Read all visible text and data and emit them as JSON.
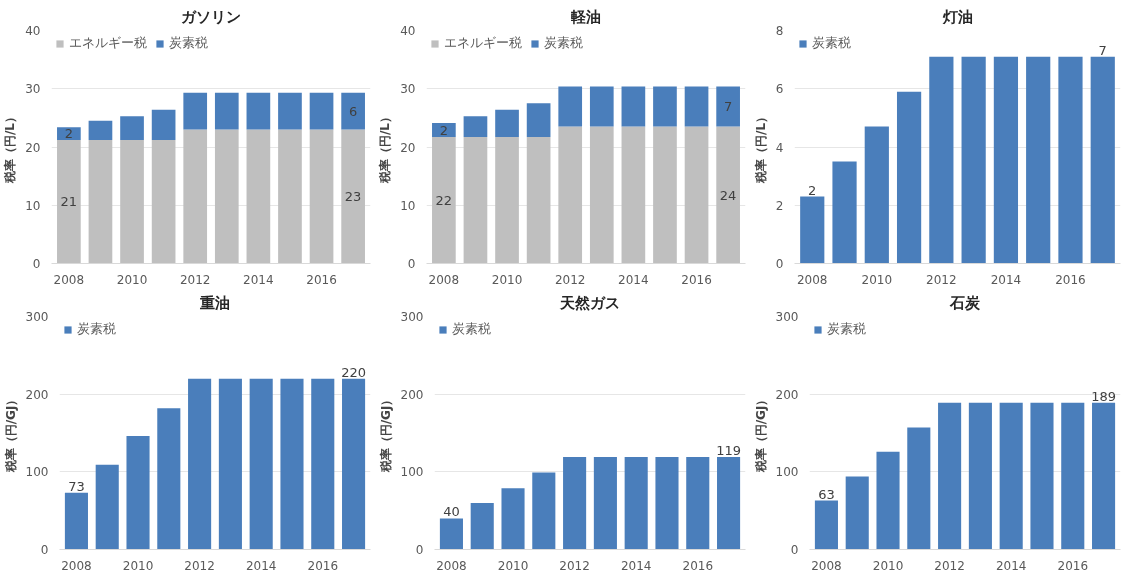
{
  "chart_data": [
    {
      "type": "bar",
      "title": "ガソリン",
      "ylabel": "税率（円/L）",
      "stacked": true,
      "categories": [
        "2008",
        null,
        "2010",
        null,
        "2012",
        null,
        "2014",
        null,
        "2016",
        null
      ],
      "ylim": [
        0,
        40
      ],
      "yticks": [
        0,
        10,
        20,
        30,
        40
      ],
      "grid": "y",
      "legend": "top left",
      "series": [
        {
          "name": "エネルギー税",
          "color": "#bfbfbf",
          "values": [
            21.2,
            21.2,
            21.2,
            21.2,
            23.0,
            23.0,
            23.0,
            23.0,
            23.0,
            23.0
          ],
          "value_labels": [
            "21",
            null,
            null,
            null,
            null,
            null,
            null,
            null,
            null,
            "23"
          ]
        },
        {
          "name": "炭素税",
          "color": "#4a7ebb",
          "values": [
            2.2,
            3.3,
            4.1,
            5.2,
            6.3,
            6.3,
            6.3,
            6.3,
            6.3,
            6.3
          ],
          "value_labels": [
            "2",
            null,
            null,
            null,
            null,
            null,
            null,
            null,
            null,
            "6"
          ]
        }
      ]
    },
    {
      "type": "bar",
      "title": "軽油",
      "ylabel": "税率（円/L）",
      "stacked": true,
      "categories": [
        "2008",
        null,
        "2010",
        null,
        "2012",
        null,
        "2014",
        null,
        "2016",
        null
      ],
      "ylim": [
        0,
        40
      ],
      "yticks": [
        0,
        10,
        20,
        30,
        40
      ],
      "grid": "y",
      "legend": "top left",
      "series": [
        {
          "name": "エネルギー税",
          "color": "#bfbfbf",
          "values": [
            21.7,
            21.7,
            21.7,
            21.7,
            23.5,
            23.5,
            23.5,
            23.5,
            23.5,
            23.5
          ],
          "value_labels": [
            "22",
            null,
            null,
            null,
            null,
            null,
            null,
            null,
            null,
            "24"
          ]
        },
        {
          "name": "炭素税",
          "color": "#4a7ebb",
          "values": [
            2.4,
            3.6,
            4.7,
            5.8,
            6.9,
            6.9,
            6.9,
            6.9,
            6.9,
            6.9
          ],
          "value_labels": [
            "2",
            null,
            null,
            null,
            null,
            null,
            null,
            null,
            null,
            "7"
          ]
        }
      ]
    },
    {
      "type": "bar",
      "title": "灯油",
      "ylabel": "税率（円/L）",
      "categories": [
        "2008",
        null,
        "2010",
        null,
        "2012",
        null,
        "2014",
        null,
        "2016",
        null
      ],
      "ylim": [
        0,
        8
      ],
      "yticks": [
        0,
        2,
        4,
        6,
        8
      ],
      "grid": "y",
      "legend": "top left",
      "series": [
        {
          "name": "炭素税",
          "color": "#4a7ebb",
          "values": [
            2.3,
            3.5,
            4.7,
            5.9,
            7.1,
            7.1,
            7.1,
            7.1,
            7.1,
            7.1
          ],
          "value_labels": [
            "2",
            null,
            null,
            null,
            null,
            null,
            null,
            null,
            null,
            "7"
          ]
        }
      ]
    },
    {
      "type": "bar",
      "title": "重油",
      "ylabel": "税率（円/GJ）",
      "categories": [
        "2008",
        null,
        "2010",
        null,
        "2012",
        null,
        "2014",
        null,
        "2016",
        null
      ],
      "ylim": [
        0,
        300
      ],
      "yticks": [
        0,
        100,
        200,
        300
      ],
      "grid": "y",
      "legend": "top left",
      "series": [
        {
          "name": "炭素税",
          "color": "#4a7ebb",
          "values": [
            73,
            109,
            146,
            182,
            220,
            220,
            220,
            220,
            220,
            220
          ],
          "value_labels": [
            "73",
            null,
            null,
            null,
            null,
            null,
            null,
            null,
            null,
            "220"
          ]
        }
      ]
    },
    {
      "type": "bar",
      "title": "天然ガス",
      "ylabel": "税率（円/GJ）",
      "categories": [
        "2008",
        null,
        "2010",
        null,
        "2012",
        null,
        "2014",
        null,
        "2016",
        null
      ],
      "ylim": [
        0,
        300
      ],
      "yticks": [
        0,
        100,
        200,
        300
      ],
      "grid": "y",
      "legend": "top left",
      "series": [
        {
          "name": "炭素税",
          "color": "#4a7ebb",
          "values": [
            40,
            60,
            79,
            99,
            119,
            119,
            119,
            119,
            119,
            119
          ],
          "value_labels": [
            "40",
            null,
            null,
            null,
            null,
            null,
            null,
            null,
            null,
            "119"
          ]
        }
      ]
    },
    {
      "type": "bar",
      "title": "石炭",
      "ylabel": "税率（円/GJ）",
      "categories": [
        "2008",
        null,
        "2010",
        null,
        "2012",
        null,
        "2014",
        null,
        "2016",
        null
      ],
      "ylim": [
        0,
        300
      ],
      "yticks": [
        0,
        100,
        200,
        300
      ],
      "grid": "y",
      "legend": "top left",
      "series": [
        {
          "name": "炭素税",
          "color": "#4a7ebb",
          "values": [
            63,
            94,
            126,
            157,
            189,
            189,
            189,
            189,
            189,
            189
          ],
          "value_labels": [
            "63",
            null,
            null,
            null,
            null,
            null,
            null,
            null,
            null,
            "189"
          ]
        }
      ]
    }
  ]
}
